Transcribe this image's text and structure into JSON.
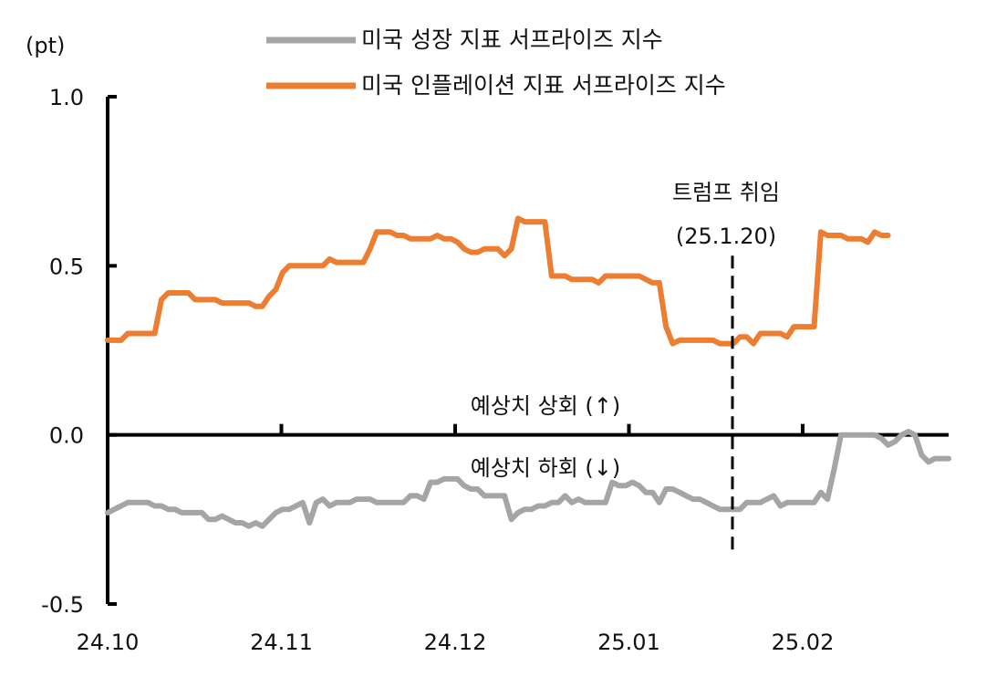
{
  "chart_data": {
    "type": "line",
    "unit_label": "(pt)",
    "y_ticks": [
      "1.0",
      "0.5",
      "0.0",
      "-0.5"
    ],
    "x_ticks": [
      "24.10",
      "24.11",
      "24.12",
      "25.01",
      "25.02"
    ],
    "ylim": [
      -0.5,
      1.0
    ],
    "xlim": [
      0,
      125
    ],
    "grid": false,
    "legend_position": "top-center",
    "series": [
      {
        "name": "미국 성장 지표 서프라이즈 지수",
        "color": "#a5a5a5",
        "points": [
          [
            0,
            -0.23
          ],
          [
            1,
            -0.22
          ],
          [
            2,
            -0.21
          ],
          [
            3,
            -0.2
          ],
          [
            4,
            -0.2
          ],
          [
            5,
            -0.2
          ],
          [
            6,
            -0.2
          ],
          [
            7,
            -0.21
          ],
          [
            8,
            -0.21
          ],
          [
            9,
            -0.22
          ],
          [
            10,
            -0.22
          ],
          [
            11,
            -0.23
          ],
          [
            12,
            -0.23
          ],
          [
            13,
            -0.23
          ],
          [
            14,
            -0.23
          ],
          [
            15,
            -0.25
          ],
          [
            16,
            -0.25
          ],
          [
            17,
            -0.24
          ],
          [
            18,
            -0.25
          ],
          [
            19,
            -0.26
          ],
          [
            20,
            -0.26
          ],
          [
            21,
            -0.27
          ],
          [
            22,
            -0.26
          ],
          [
            23,
            -0.27
          ],
          [
            24,
            -0.25
          ],
          [
            25,
            -0.23
          ],
          [
            26,
            -0.22
          ],
          [
            27,
            -0.22
          ],
          [
            28,
            -0.21
          ],
          [
            29,
            -0.2
          ],
          [
            30,
            -0.26
          ],
          [
            31,
            -0.2
          ],
          [
            32,
            -0.19
          ],
          [
            33,
            -0.21
          ],
          [
            34,
            -0.2
          ],
          [
            35,
            -0.2
          ],
          [
            36,
            -0.2
          ],
          [
            37,
            -0.19
          ],
          [
            38,
            -0.19
          ],
          [
            39,
            -0.19
          ],
          [
            40,
            -0.2
          ],
          [
            41,
            -0.2
          ],
          [
            42,
            -0.2
          ],
          [
            43,
            -0.2
          ],
          [
            44,
            -0.2
          ],
          [
            45,
            -0.18
          ],
          [
            46,
            -0.18
          ],
          [
            47,
            -0.19
          ],
          [
            48,
            -0.14
          ],
          [
            49,
            -0.14
          ],
          [
            50,
            -0.13
          ],
          [
            51,
            -0.13
          ],
          [
            52,
            -0.13
          ],
          [
            53,
            -0.15
          ],
          [
            54,
            -0.16
          ],
          [
            55,
            -0.16
          ],
          [
            56,
            -0.18
          ],
          [
            57,
            -0.18
          ],
          [
            58,
            -0.18
          ],
          [
            59,
            -0.18
          ],
          [
            60,
            -0.25
          ],
          [
            61,
            -0.23
          ],
          [
            62,
            -0.22
          ],
          [
            63,
            -0.22
          ],
          [
            64,
            -0.21
          ],
          [
            65,
            -0.21
          ],
          [
            66,
            -0.2
          ],
          [
            67,
            -0.2
          ],
          [
            68,
            -0.18
          ],
          [
            69,
            -0.2
          ],
          [
            70,
            -0.19
          ],
          [
            71,
            -0.2
          ],
          [
            72,
            -0.2
          ],
          [
            73,
            -0.2
          ],
          [
            74,
            -0.2
          ],
          [
            75,
            -0.14
          ],
          [
            76,
            -0.15
          ],
          [
            77,
            -0.15
          ],
          [
            78,
            -0.14
          ],
          [
            79,
            -0.15
          ],
          [
            80,
            -0.17
          ],
          [
            81,
            -0.17
          ],
          [
            82,
            -0.2
          ],
          [
            83,
            -0.16
          ],
          [
            84,
            -0.16
          ],
          [
            85,
            -0.17
          ],
          [
            86,
            -0.18
          ],
          [
            87,
            -0.19
          ],
          [
            88,
            -0.19
          ],
          [
            89,
            -0.2
          ],
          [
            90,
            -0.21
          ],
          [
            91,
            -0.22
          ],
          [
            92,
            -0.22
          ],
          [
            93,
            -0.22
          ],
          [
            94,
            -0.22
          ],
          [
            95,
            -0.2
          ],
          [
            96,
            -0.2
          ],
          [
            97,
            -0.2
          ],
          [
            98,
            -0.19
          ],
          [
            99,
            -0.18
          ],
          [
            100,
            -0.21
          ],
          [
            101,
            -0.2
          ],
          [
            102,
            -0.2
          ],
          [
            103,
            -0.2
          ],
          [
            104,
            -0.2
          ],
          [
            105,
            -0.2
          ],
          [
            106,
            -0.17
          ],
          [
            107,
            -0.19
          ],
          [
            108,
            -0.1
          ],
          [
            109,
            0.0
          ],
          [
            110,
            0.0
          ],
          [
            111,
            0.0
          ],
          [
            112,
            0.0
          ],
          [
            113,
            0.0
          ],
          [
            114,
            0.0
          ],
          [
            115,
            -0.01
          ],
          [
            116,
            -0.03
          ],
          [
            117,
            -0.02
          ],
          [
            118,
            0.0
          ],
          [
            119,
            0.01
          ],
          [
            120,
            0.0
          ],
          [
            121,
            -0.06
          ],
          [
            122,
            -0.08
          ],
          [
            123,
            -0.07
          ],
          [
            124,
            -0.07
          ],
          [
            125,
            -0.07
          ]
        ]
      },
      {
        "name": "미국 인플레이션 지표 서프라이즈 지수",
        "color": "#ed7d31",
        "points": [
          [
            0,
            0.28
          ],
          [
            1,
            0.28
          ],
          [
            2,
            0.28
          ],
          [
            3,
            0.3
          ],
          [
            4,
            0.3
          ],
          [
            5,
            0.3
          ],
          [
            6,
            0.3
          ],
          [
            7,
            0.3
          ],
          [
            8,
            0.4
          ],
          [
            9,
            0.42
          ],
          [
            10,
            0.42
          ],
          [
            11,
            0.42
          ],
          [
            12,
            0.42
          ],
          [
            13,
            0.4
          ],
          [
            14,
            0.4
          ],
          [
            15,
            0.4
          ],
          [
            16,
            0.4
          ],
          [
            17,
            0.39
          ],
          [
            18,
            0.39
          ],
          [
            19,
            0.39
          ],
          [
            20,
            0.39
          ],
          [
            21,
            0.39
          ],
          [
            22,
            0.38
          ],
          [
            23,
            0.38
          ],
          [
            24,
            0.41
          ],
          [
            25,
            0.43
          ],
          [
            26,
            0.48
          ],
          [
            27,
            0.5
          ],
          [
            28,
            0.5
          ],
          [
            29,
            0.5
          ],
          [
            30,
            0.5
          ],
          [
            31,
            0.5
          ],
          [
            32,
            0.5
          ],
          [
            33,
            0.52
          ],
          [
            34,
            0.51
          ],
          [
            35,
            0.51
          ],
          [
            36,
            0.51
          ],
          [
            37,
            0.51
          ],
          [
            38,
            0.51
          ],
          [
            39,
            0.55
          ],
          [
            40,
            0.6
          ],
          [
            41,
            0.6
          ],
          [
            42,
            0.6
          ],
          [
            43,
            0.59
          ],
          [
            44,
            0.59
          ],
          [
            45,
            0.58
          ],
          [
            46,
            0.58
          ],
          [
            47,
            0.58
          ],
          [
            48,
            0.58
          ],
          [
            49,
            0.59
          ],
          [
            50,
            0.58
          ],
          [
            51,
            0.58
          ],
          [
            52,
            0.57
          ],
          [
            53,
            0.55
          ],
          [
            54,
            0.54
          ],
          [
            55,
            0.54
          ],
          [
            56,
            0.55
          ],
          [
            57,
            0.55
          ],
          [
            58,
            0.55
          ],
          [
            59,
            0.53
          ],
          [
            60,
            0.55
          ],
          [
            61,
            0.64
          ],
          [
            62,
            0.63
          ],
          [
            63,
            0.63
          ],
          [
            64,
            0.63
          ],
          [
            65,
            0.63
          ],
          [
            66,
            0.47
          ],
          [
            67,
            0.47
          ],
          [
            68,
            0.47
          ],
          [
            69,
            0.46
          ],
          [
            70,
            0.46
          ],
          [
            71,
            0.46
          ],
          [
            72,
            0.46
          ],
          [
            73,
            0.45
          ],
          [
            74,
            0.47
          ],
          [
            75,
            0.47
          ],
          [
            76,
            0.47
          ],
          [
            77,
            0.47
          ],
          [
            78,
            0.47
          ],
          [
            79,
            0.47
          ],
          [
            80,
            0.46
          ],
          [
            81,
            0.45
          ],
          [
            82,
            0.45
          ],
          [
            83,
            0.32
          ],
          [
            84,
            0.27
          ],
          [
            85,
            0.28
          ],
          [
            86,
            0.28
          ],
          [
            87,
            0.28
          ],
          [
            88,
            0.28
          ],
          [
            89,
            0.28
          ],
          [
            90,
            0.28
          ],
          [
            91,
            0.27
          ],
          [
            92,
            0.27
          ],
          [
            93,
            0.27
          ],
          [
            94,
            0.29
          ],
          [
            95,
            0.29
          ],
          [
            96,
            0.27
          ],
          [
            97,
            0.3
          ],
          [
            98,
            0.3
          ],
          [
            99,
            0.3
          ],
          [
            100,
            0.3
          ],
          [
            101,
            0.29
          ],
          [
            102,
            0.32
          ],
          [
            103,
            0.32
          ],
          [
            104,
            0.32
          ],
          [
            105,
            0.32
          ],
          [
            106,
            0.6
          ],
          [
            107,
            0.59
          ],
          [
            108,
            0.59
          ],
          [
            109,
            0.59
          ],
          [
            110,
            0.58
          ],
          [
            111,
            0.58
          ],
          [
            112,
            0.58
          ],
          [
            113,
            0.57
          ],
          [
            114,
            0.6
          ],
          [
            115,
            0.59
          ],
          [
            116,
            0.59
          ]
        ]
      }
    ],
    "annotations": {
      "event_title": "트럼프 취임",
      "event_date": "(25.1.20)",
      "above_label": "예상치 상회 (↑)",
      "below_label": "예상치 하회 (↓)"
    }
  }
}
